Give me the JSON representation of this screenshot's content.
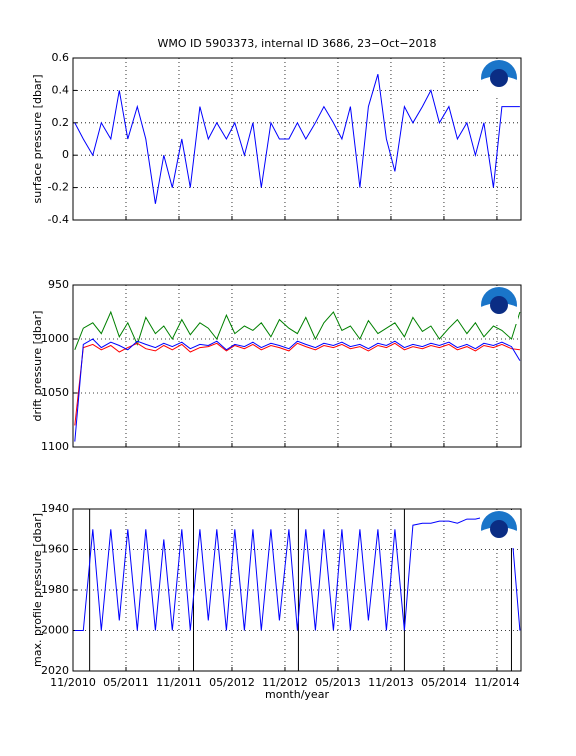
{
  "chart_data": [
    {
      "type": "line",
      "title": "WMO ID 5903373, internal ID 3686, 23−Oct−2018",
      "ylabel": "surface pressure [dbar]",
      "ylim": [
        -0.4,
        0.6
      ],
      "yticks": [
        -0.4,
        -0.2,
        0,
        0.2,
        0.4,
        0.6
      ],
      "y_reversed": false,
      "grid": true,
      "color": "#0000ff",
      "x": [
        2010.85,
        2010.93,
        2011.02,
        2011.1,
        2011.19,
        2011.27,
        2011.35,
        2011.44,
        2011.52,
        2011.61,
        2011.69,
        2011.77,
        2011.86,
        2011.94,
        2012.03,
        2012.11,
        2012.19,
        2012.28,
        2012.36,
        2012.45,
        2012.53,
        2012.61,
        2012.7,
        2012.78,
        2012.87,
        2012.95,
        2013.03,
        2013.12,
        2013.2,
        2013.29,
        2013.37,
        2013.45,
        2013.54,
        2013.62,
        2013.71,
        2013.79,
        2013.87,
        2013.96,
        2014.04,
        2014.13,
        2014.21,
        2014.29,
        2014.38,
        2014.46,
        2014.55,
        2014.63,
        2014.71,
        2014.8,
        2014.88,
        2014.97,
        2015.05
      ],
      "values": [
        0.2,
        0.1,
        0,
        0.2,
        0.1,
        0.4,
        0.1,
        0.3,
        0.1,
        -0.3,
        0,
        -0.2,
        0.1,
        -0.2,
        0.3,
        0.1,
        0.2,
        0.1,
        0.2,
        0,
        0.2,
        -0.2,
        0.2,
        0.1,
        0.1,
        0.2,
        0.1,
        0.2,
        0.3,
        0.2,
        0.1,
        0.3,
        -0.2,
        0.3,
        0.5,
        0.1,
        -0.1,
        0.3,
        0.2,
        0.3,
        0.4,
        0.2,
        0.3,
        0.1,
        0.2,
        0,
        0.2,
        -0.2,
        0.3,
        0.3,
        0.3
      ]
    },
    {
      "type": "line",
      "ylabel": "drift pressure [dbar]",
      "ylim": [
        950,
        1100
      ],
      "yticks": [
        950,
        1000,
        1050,
        1100
      ],
      "y_reversed": true,
      "grid": true,
      "x": [
        2010.85,
        2010.93,
        2011.02,
        2011.1,
        2011.19,
        2011.27,
        2011.35,
        2011.44,
        2011.52,
        2011.61,
        2011.69,
        2011.77,
        2011.86,
        2011.94,
        2012.03,
        2012.11,
        2012.19,
        2012.28,
        2012.36,
        2012.45,
        2012.53,
        2012.61,
        2012.7,
        2012.78,
        2012.87,
        2012.95,
        2013.03,
        2013.12,
        2013.2,
        2013.29,
        2013.37,
        2013.45,
        2013.54,
        2013.62,
        2013.71,
        2013.79,
        2013.87,
        2013.96,
        2014.04,
        2014.13,
        2014.21,
        2014.29,
        2014.38,
        2014.46,
        2014.55,
        2014.63,
        2014.71,
        2014.8,
        2014.88,
        2014.97,
        2015.05
      ],
      "series": [
        {
          "color": "#008000",
          "values": [
            1010,
            990,
            985,
            995,
            975,
            998,
            985,
            1005,
            980,
            995,
            988,
            1000,
            982,
            996,
            985,
            990,
            1000,
            978,
            995,
            988,
            992,
            985,
            998,
            982,
            990,
            995,
            980,
            1000,
            985,
            975,
            992,
            988,
            1000,
            983,
            995,
            990,
            985,
            998,
            980,
            993,
            988,
            1000,
            990,
            982,
            995,
            985,
            998,
            988,
            992,
            1000,
            975
          ]
        },
        {
          "color": "#ff0000",
          "values": [
            1080,
            1008,
            1005,
            1010,
            1006,
            1012,
            1008,
            1004,
            1009,
            1011,
            1006,
            1010,
            1005,
            1012,
            1008,
            1007,
            1004,
            1011,
            1006,
            1009,
            1005,
            1010,
            1006,
            1008,
            1011,
            1004,
            1007,
            1010,
            1006,
            1008,
            1005,
            1009,
            1007,
            1011,
            1006,
            1008,
            1004,
            1010,
            1007,
            1009,
            1006,
            1008,
            1005,
            1010,
            1007,
            1011,
            1006,
            1008,
            1005,
            1009,
            1010
          ]
        },
        {
          "color": "#0000ff",
          "values": [
            1095,
            1005,
            1000,
            1008,
            1003,
            1006,
            1010,
            1002,
            1005,
            1008,
            1004,
            1007,
            1003,
            1009,
            1005,
            1006,
            1002,
            1010,
            1005,
            1007,
            1003,
            1008,
            1004,
            1006,
            1009,
            1002,
            1005,
            1008,
            1004,
            1006,
            1003,
            1007,
            1005,
            1009,
            1004,
            1006,
            1002,
            1008,
            1005,
            1007,
            1004,
            1006,
            1003,
            1008,
            1005,
            1009,
            1004,
            1006,
            1003,
            1007,
            1020
          ]
        }
      ]
    },
    {
      "type": "line",
      "ylabel": "max. profile pressure [dbar]",
      "xlabel": "month/year",
      "ylim": [
        1940,
        2020
      ],
      "yticks": [
        1940,
        1960,
        1980,
        2000,
        2020
      ],
      "y_reversed": true,
      "grid": true,
      "color": "#0000ff",
      "xlim": [
        2010.833,
        2015.06
      ],
      "xticks": [
        {
          "value": 2010.833,
          "label": "11/2010"
        },
        {
          "value": 2011.333,
          "label": "05/2011"
        },
        {
          "value": 2011.833,
          "label": "11/2011"
        },
        {
          "value": 2012.333,
          "label": "05/2012"
        },
        {
          "value": 2012.833,
          "label": "11/2012"
        },
        {
          "value": 2013.333,
          "label": "05/2013"
        },
        {
          "value": 2013.833,
          "label": "11/2013"
        },
        {
          "value": 2014.333,
          "label": "05/2014"
        },
        {
          "value": 2014.833,
          "label": "11/2014"
        }
      ],
      "vlines_x": [
        2010.99,
        2011.97,
        2012.96,
        2013.96,
        2014.97
      ],
      "vlines_color": "#000000",
      "x": [
        2010.85,
        2010.93,
        2011.02,
        2011.1,
        2011.19,
        2011.27,
        2011.35,
        2011.44,
        2011.52,
        2011.61,
        2011.69,
        2011.77,
        2011.86,
        2011.94,
        2012.03,
        2012.11,
        2012.19,
        2012.28,
        2012.36,
        2012.45,
        2012.53,
        2012.61,
        2012.7,
        2012.78,
        2012.87,
        2012.95,
        2013.03,
        2013.12,
        2013.2,
        2013.29,
        2013.37,
        2013.45,
        2013.54,
        2013.62,
        2013.71,
        2013.79,
        2013.87,
        2013.96,
        2014.04,
        2014.13,
        2014.21,
        2014.29,
        2014.38,
        2014.46,
        2014.55,
        2014.63,
        2014.71,
        2014.8,
        2014.88,
        2014.97,
        2015.05
      ],
      "values": [
        2000,
        2000,
        1950,
        2000,
        1950,
        1995,
        1950,
        2000,
        1950,
        2000,
        1955,
        2000,
        1950,
        2000,
        1950,
        1995,
        1950,
        2000,
        1950,
        2000,
        1950,
        2000,
        1950,
        1995,
        1950,
        2000,
        1950,
        2000,
        1950,
        2000,
        1950,
        2000,
        1950,
        1995,
        1950,
        2000,
        1950,
        2000,
        1948,
        1947,
        1947,
        1946,
        1946,
        1947,
        1945,
        1945,
        1944,
        1944,
        1945,
        1950,
        2000
      ]
    }
  ]
}
